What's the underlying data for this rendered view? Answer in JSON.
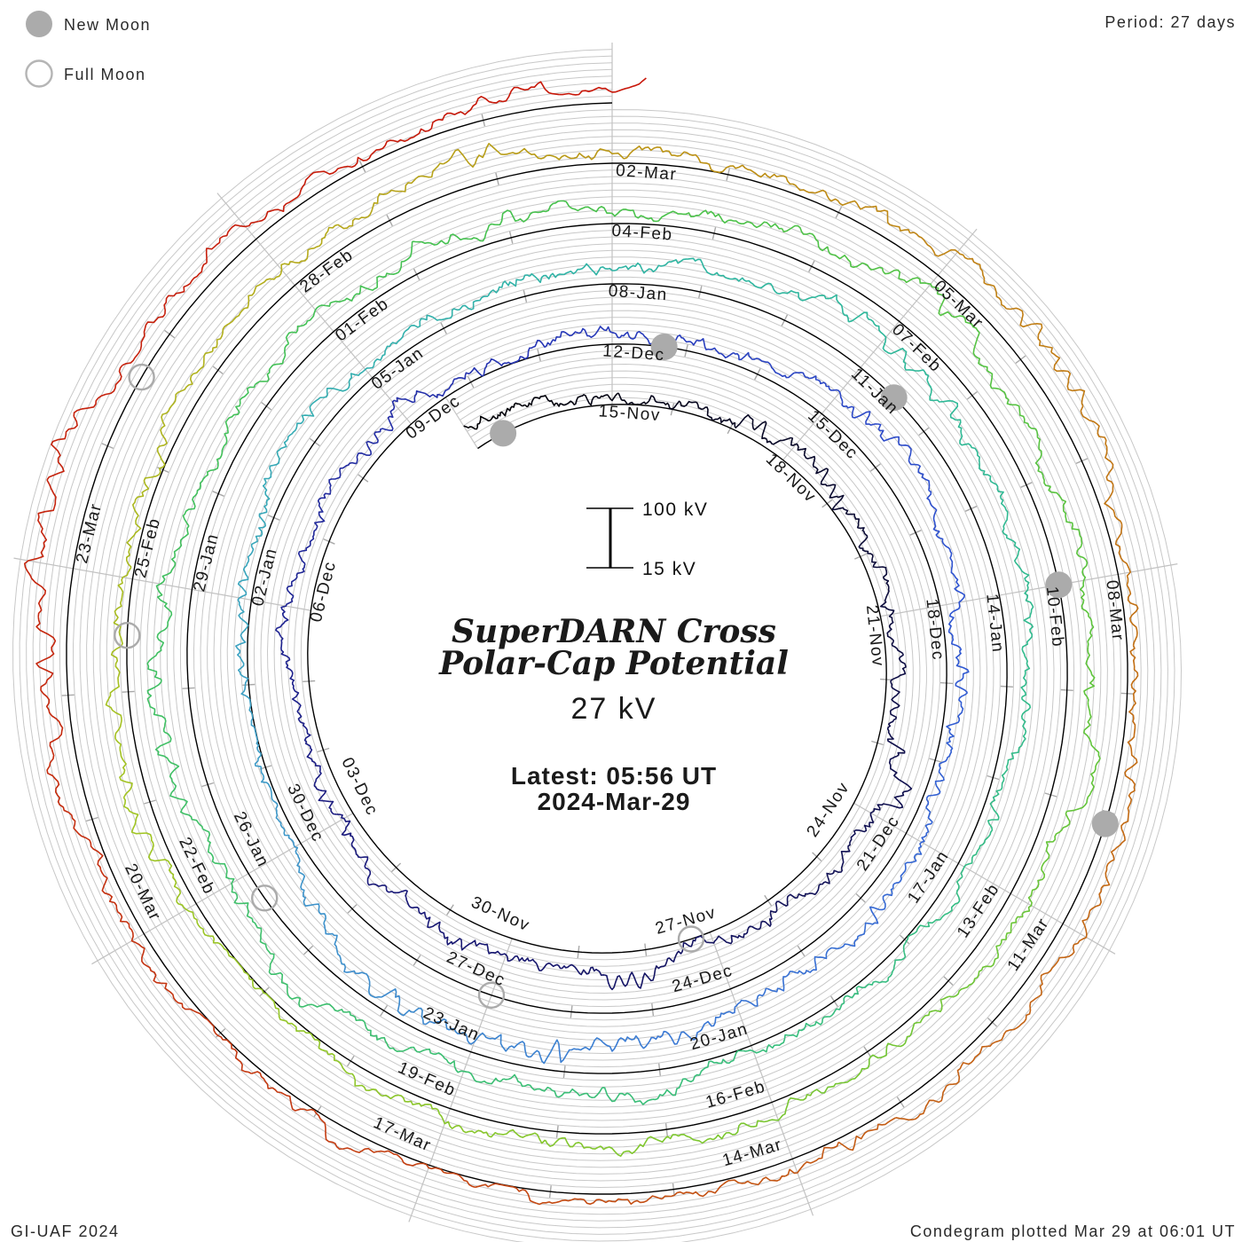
{
  "header": {
    "period_label": "Period: 27 days"
  },
  "legend": {
    "new_moon_label": "New Moon",
    "full_moon_label": "Full Moon"
  },
  "footer": {
    "left": "GI-UAF 2024",
    "right": "Condegram plotted Mar 29 at 06:01 UT"
  },
  "center": {
    "title_line1": "SuperDARN Cross",
    "title_line2": "Polar-Cap Potential",
    "current_value": "27 kV",
    "latest_line1": "Latest: 05:56 UT",
    "latest_line2": "2024-Mar-29"
  },
  "scale": {
    "high_label": "100 kV",
    "low_label": "15 kV"
  },
  "colors": {
    "accent_red": "#ee3434",
    "grid_gray": "#c8c8c8",
    "radial_gray": "#c2c2c2",
    "tick_gray": "#a8a8a8",
    "baseline_black": "#000000",
    "moon_gray": "#ababab",
    "text_black": "#1a1a1a"
  },
  "chart_data": {
    "type": "line",
    "layout": "spiral_condegram",
    "title": "SuperDARN Cross Polar-Cap Potential",
    "subtitle": "27 kV",
    "period_days": 27,
    "label_step_days": 3,
    "start_day_label": "15-Nov",
    "end_timestamp": "2024-Mar-29 05:56 UT",
    "value_scale_kv": {
      "baseline": 15,
      "reference": 100
    },
    "ylim": [
      15,
      100
    ],
    "grid": true,
    "revolutions": 5.01,
    "date_labels": [
      {
        "label": "15-Nov",
        "day": 0
      },
      {
        "label": "18-Nov",
        "day": 3
      },
      {
        "label": "21-Nov",
        "day": 6
      },
      {
        "label": "24-Nov",
        "day": 9
      },
      {
        "label": "27-Nov",
        "day": 12
      },
      {
        "label": "30-Nov",
        "day": 15
      },
      {
        "label": "03-Dec",
        "day": 18
      },
      {
        "label": "06-Dec",
        "day": 21
      },
      {
        "label": "09-Dec",
        "day": 24
      },
      {
        "label": "12-Dec",
        "day": 27
      },
      {
        "label": "15-Dec",
        "day": 30
      },
      {
        "label": "18-Dec",
        "day": 33
      },
      {
        "label": "21-Dec",
        "day": 36
      },
      {
        "label": "24-Dec",
        "day": 39
      },
      {
        "label": "27-Dec",
        "day": 42
      },
      {
        "label": "30-Dec",
        "day": 45
      },
      {
        "label": "02-Jan",
        "day": 48
      },
      {
        "label": "05-Jan",
        "day": 51
      },
      {
        "label": "08-Jan",
        "day": 54
      },
      {
        "label": "11-Jan",
        "day": 57
      },
      {
        "label": "14-Jan",
        "day": 60
      },
      {
        "label": "17-Jan",
        "day": 63
      },
      {
        "label": "20-Jan",
        "day": 66
      },
      {
        "label": "23-Jan",
        "day": 69
      },
      {
        "label": "26-Jan",
        "day": 72
      },
      {
        "label": "29-Jan",
        "day": 75
      },
      {
        "label": "01-Feb",
        "day": 78
      },
      {
        "label": "04-Feb",
        "day": 81
      },
      {
        "label": "07-Feb",
        "day": 84
      },
      {
        "label": "10-Feb",
        "day": 87
      },
      {
        "label": "13-Feb",
        "day": 90
      },
      {
        "label": "16-Feb",
        "day": 93
      },
      {
        "label": "19-Feb",
        "day": 96
      },
      {
        "label": "22-Feb",
        "day": 99
      },
      {
        "label": "25-Feb",
        "day": 102
      },
      {
        "label": "28-Feb",
        "day": 105
      },
      {
        "label": "02-Mar",
        "day": 108
      },
      {
        "label": "05-Mar",
        "day": 111
      },
      {
        "label": "08-Mar",
        "day": 114
      },
      {
        "label": "11-Mar",
        "day": 117
      },
      {
        "label": "14-Mar",
        "day": 120
      },
      {
        "label": "17-Mar",
        "day": 123
      },
      {
        "label": "20-Mar",
        "day": 126
      },
      {
        "label": "23-Mar",
        "day": 129
      }
    ],
    "moon_events": {
      "new_moon_days": [
        -1.9,
        27.7,
        57.5,
        87.0,
        116.1
      ],
      "full_moon_days": [
        12.3,
        42.0,
        71.7,
        101.5,
        130.6
      ]
    },
    "color_stops": [
      [
        -3,
        "#000000"
      ],
      [
        8,
        "#10104c"
      ],
      [
        18,
        "#1a1a7e"
      ],
      [
        26,
        "#2736b6"
      ],
      [
        33,
        "#2f55d2"
      ],
      [
        40,
        "#3b7ad4"
      ],
      [
        46,
        "#3f9cc8"
      ],
      [
        51,
        "#32afae"
      ],
      [
        57,
        "#2eb89a"
      ],
      [
        64,
        "#36bd82"
      ],
      [
        72,
        "#3fc06a"
      ],
      [
        80,
        "#46c14e"
      ],
      [
        88,
        "#5fc43c"
      ],
      [
        95,
        "#84c72e"
      ],
      [
        100,
        "#a2c524"
      ],
      [
        105,
        "#b4ac1c"
      ],
      [
        109,
        "#bd9016"
      ],
      [
        113,
        "#c27714"
      ],
      [
        119,
        "#c45e14"
      ],
      [
        124,
        "#c43c12"
      ],
      [
        129,
        "#c5250e"
      ],
      [
        136,
        "#c81408"
      ]
    ],
    "trace": {
      "approximate": true,
      "note": "hourly cross polar-cap potential, 15-100 kV, plotted radially above spiral baseline",
      "seed": 20240329,
      "samples_per_day": 40,
      "day_start": -2.4,
      "day_end": 135.25,
      "grid_end_day": 135.0
    }
  }
}
